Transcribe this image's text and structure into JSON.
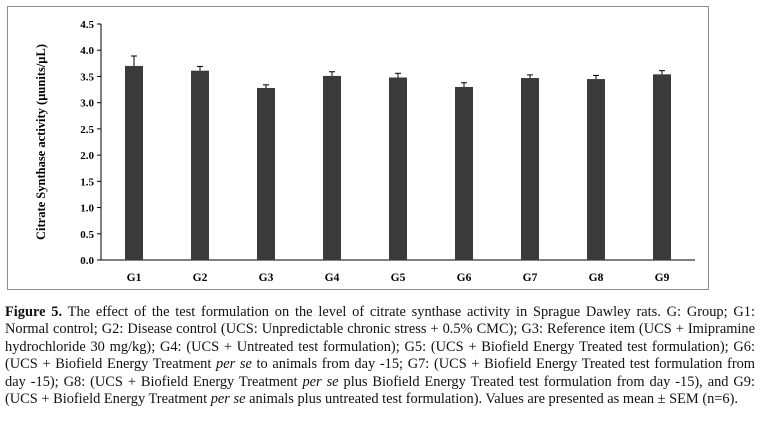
{
  "chart_data": {
    "type": "bar",
    "categories": [
      "G1",
      "G2",
      "G3",
      "G4",
      "G5",
      "G6",
      "G7",
      "G8",
      "G9"
    ],
    "values": [
      3.7,
      3.61,
      3.28,
      3.51,
      3.48,
      3.3,
      3.47,
      3.45,
      3.54
    ],
    "errors": [
      0.19,
      0.08,
      0.06,
      0.08,
      0.08,
      0.08,
      0.06,
      0.07,
      0.07
    ],
    "ylabel": "Citrate Synthase activity (µunits/µL)",
    "xlabel": "",
    "ylim": [
      0,
      4.5
    ],
    "yticks": [
      "0.0",
      "0.5",
      "1.0",
      "1.5",
      "2.0",
      "2.5",
      "3.0",
      "3.5",
      "4.0",
      "4.5"
    ],
    "grid": false,
    "legend": "none",
    "bar_color": "#3a3a3a",
    "error_bar": "SEM"
  },
  "caption": {
    "label": "Figure 5.",
    "parts": [
      {
        "text": " The effect of the test formulation on the level of citrate synthase activity in Sprague Dawley rats. G: Group; G1: Normal control; G2: Disease control (UCS: Unpredictable chronic stress + 0.5% CMC); G3: Reference item (UCS + Imipramine hydrochloride 30 mg/kg); G4: (UCS + Untreated test formulation); G5: (UCS + Biofield Energy Treated test formulation); G6: (UCS + Biofield Energy Treatment ",
        "italic": false
      },
      {
        "text": "per se",
        "italic": true
      },
      {
        "text": " to animals from day -15; G7: (UCS + Biofield Energy Treated test formulation from day -15); G8: (UCS + Biofield Energy Treatment ",
        "italic": false
      },
      {
        "text": "per se",
        "italic": true
      },
      {
        "text": " plus Biofield Energy Treated test formulation from day -15), and G9: (UCS + Biofield Energy Treatment ",
        "italic": false
      },
      {
        "text": "per se",
        "italic": true
      },
      {
        "text": " animals plus untreated test formulation). Values are presented as mean ± SEM (n=6).",
        "italic": false
      }
    ]
  }
}
